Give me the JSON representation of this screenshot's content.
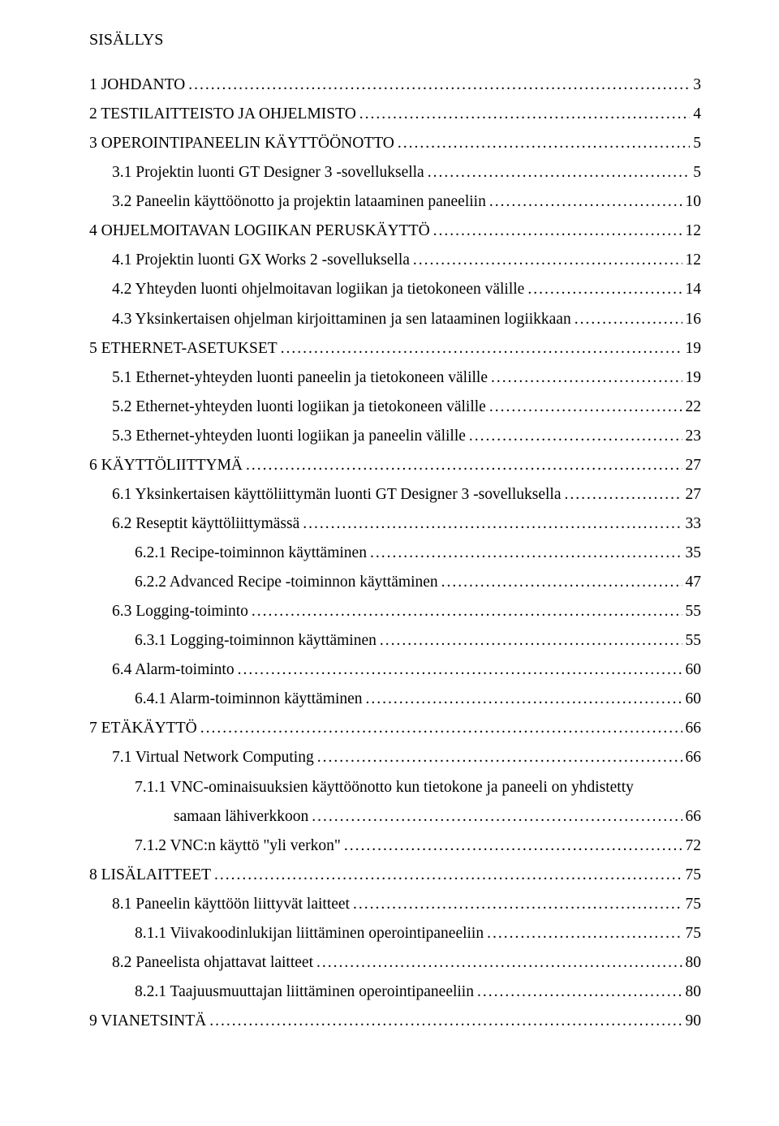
{
  "title": "SISÄLLYS",
  "entries": [
    {
      "level": 1,
      "label": "1 JOHDANTO",
      "page": "3"
    },
    {
      "level": 1,
      "label": "2 TESTILAITTEISTO JA OHJELMISTO",
      "page": "4"
    },
    {
      "level": 1,
      "label": "3 OPEROINTIPANEELIN KÄYTTÖÖNOTTO",
      "page": "5"
    },
    {
      "level": 2,
      "label": "3.1  Projektin luonti GT Designer 3 -sovelluksella",
      "page": "5"
    },
    {
      "level": 2,
      "label": "3.2  Paneelin käyttöönotto ja projektin lataaminen paneeliin",
      "page": "10"
    },
    {
      "level": 1,
      "label": "4 OHJELMOITAVAN LOGIIKAN PERUSKÄYTTÖ",
      "page": "12"
    },
    {
      "level": 2,
      "label": "4.1  Projektin luonti GX Works 2 -sovelluksella",
      "page": "12"
    },
    {
      "level": 2,
      "label": "4.2  Yhteyden luonti ohjelmoitavan logiikan ja tietokoneen välille",
      "page": "14"
    },
    {
      "level": 2,
      "label": "4.3  Yksinkertaisen ohjelman kirjoittaminen ja sen lataaminen logiikkaan",
      "page": "16"
    },
    {
      "level": 1,
      "label": "5 ETHERNET-ASETUKSET",
      "page": "19"
    },
    {
      "level": 2,
      "label": "5.1  Ethernet-yhteyden luonti paneelin ja tietokoneen välille",
      "page": "19"
    },
    {
      "level": 2,
      "label": "5.2  Ethernet-yhteyden luonti logiikan ja tietokoneen välille",
      "page": "22"
    },
    {
      "level": 2,
      "label": "5.3  Ethernet-yhteyden luonti logiikan ja paneelin välille",
      "page": "23"
    },
    {
      "level": 1,
      "label": "6 KÄYTTÖLIITTYMÄ",
      "page": "27"
    },
    {
      "level": 2,
      "label": "6.1  Yksinkertaisen käyttöliittymän  luonti GT Designer 3 -sovelluksella",
      "page": "27"
    },
    {
      "level": 2,
      "label": "6.2  Reseptit käyttöliittymässä",
      "page": "33"
    },
    {
      "level": 3,
      "label": "6.2.1  Recipe-toiminnon käyttäminen",
      "page": "35"
    },
    {
      "level": 3,
      "label": "6.2.2  Advanced Recipe -toiminnon käyttäminen",
      "page": "47"
    },
    {
      "level": 2,
      "label": "6.3  Logging-toiminto",
      "page": "55"
    },
    {
      "level": 3,
      "label": "6.3.1  Logging-toiminnon käyttäminen",
      "page": "55"
    },
    {
      "level": 2,
      "label": "6.4  Alarm-toiminto",
      "page": "60"
    },
    {
      "level": 3,
      "label": "6.4.1  Alarm-toiminnon käyttäminen",
      "page": "60"
    },
    {
      "level": 1,
      "label": "7 ETÄKÄYTTÖ",
      "page": "66"
    },
    {
      "level": 2,
      "label": "7.1  Virtual Network Computing",
      "page": "66"
    },
    {
      "level": 3,
      "label": "7.1.1  VNC-ominaisuuksien käyttöönotto kun tietokone ja paneeli on yhdistetty",
      "page": ""
    },
    {
      "level": 4,
      "label": "samaan lähiverkkoon",
      "page": "66"
    },
    {
      "level": 3,
      "label": "7.1.2  VNC:n käyttö \"yli verkon\"",
      "page": "72"
    },
    {
      "level": 1,
      "label": "8 LISÄLAITTEET",
      "page": "75"
    },
    {
      "level": 2,
      "label": "8.1  Paneelin käyttöön liittyvät laitteet",
      "page": "75"
    },
    {
      "level": 3,
      "label": "8.1.1  Viivakoodinlukijan liittäminen operointipaneeliin",
      "page": "75"
    },
    {
      "level": 2,
      "label": "8.2  Paneelista ohjattavat laitteet",
      "page": "80"
    },
    {
      "level": 3,
      "label": "8.2.1  Taajuusmuuttajan liittäminen operointipaneeliin",
      "page": "80"
    },
    {
      "level": 1,
      "label": "9 VIANETSINTÄ",
      "page": "90"
    }
  ]
}
